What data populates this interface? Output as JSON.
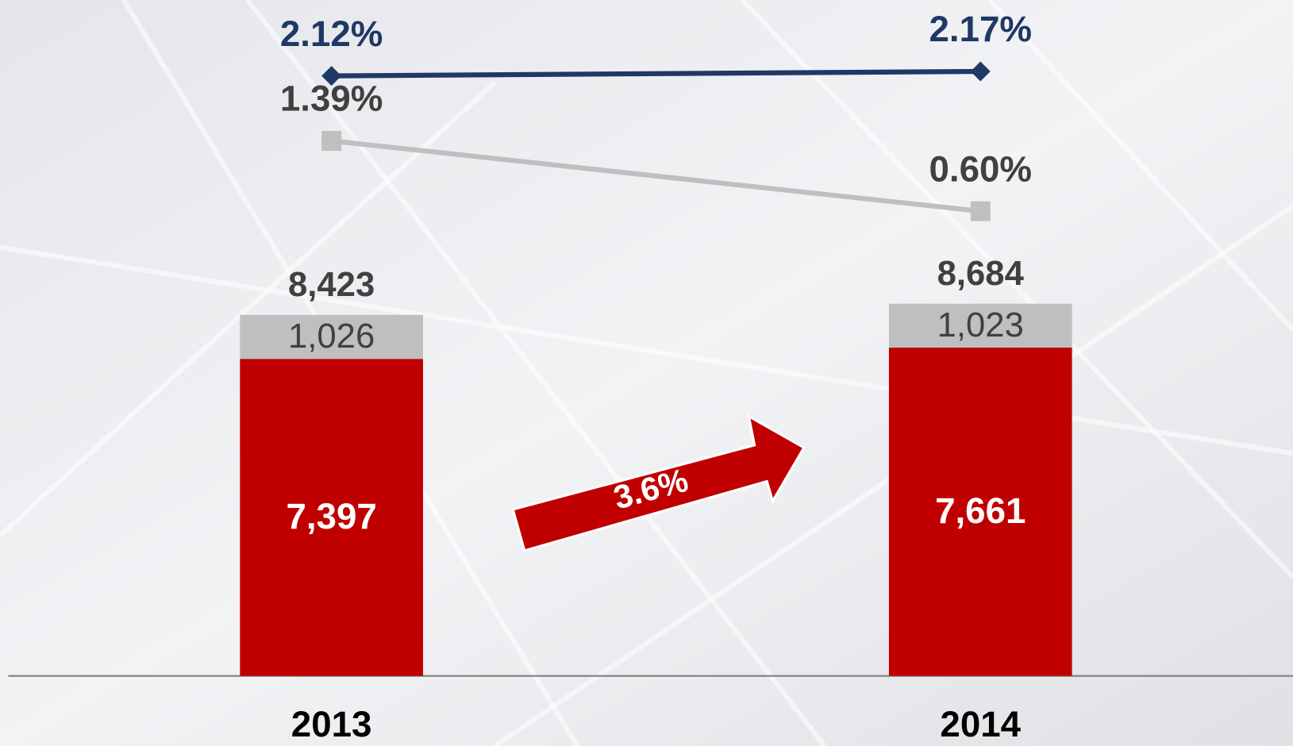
{
  "chart_data": {
    "type": "bar",
    "categories": [
      "2013",
      "2014"
    ],
    "series": [
      {
        "color": "#c00000",
        "values": [
          7397,
          7661
        ],
        "value_labels": [
          "7,397",
          "7,661"
        ]
      },
      {
        "color": "#bfbfbf",
        "values": [
          1026,
          1023
        ],
        "value_labels": [
          "1,026",
          "1,023"
        ]
      }
    ],
    "totals": {
      "values": [
        8423,
        8684
      ],
      "value_labels": [
        "8,423",
        "8,684"
      ]
    },
    "lines": [
      {
        "color": "#1f3864",
        "marker": "diamond",
        "values": [
          2.12,
          2.17
        ],
        "value_labels": [
          "2.12%",
          "2.17%"
        ]
      },
      {
        "color": "#bfbfbf",
        "marker": "square",
        "values": [
          1.39,
          0.6
        ],
        "value_labels": [
          "1.39%",
          "0.60%"
        ]
      }
    ],
    "annotation": "3.6%"
  }
}
